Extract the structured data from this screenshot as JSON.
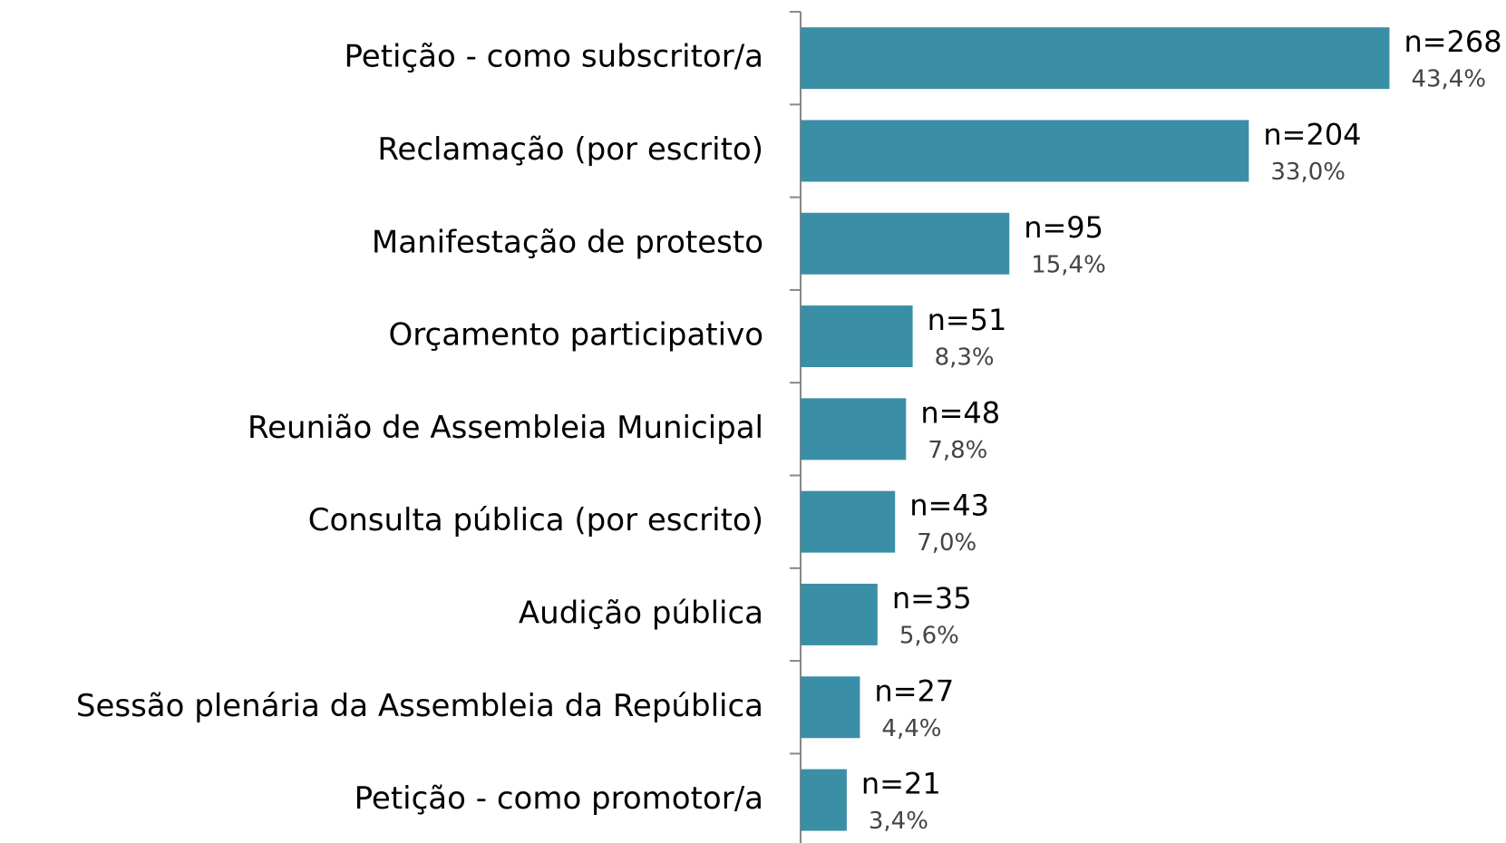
{
  "chart_data": {
    "type": "barh",
    "categories": [
      "Petição - como subscritor/a",
      "Reclamação (por escrito)",
      "Manifestação de protesto",
      "Orçamento participativo",
      "Reunião de Assembleia Municipal",
      "Consulta pública (por escrito)",
      "Audição pública",
      "Sessão plenária da Assembleia da República",
      "Petição - como promotor/a"
    ],
    "values": [
      268,
      204,
      95,
      51,
      48,
      43,
      35,
      27,
      21
    ],
    "value_labels": [
      "n=268",
      "n=204",
      "n=95",
      "n=51",
      "n=48",
      "n=43",
      "n=35",
      "n=27",
      "n=21"
    ],
    "percents": [
      43.4,
      33.0,
      15.4,
      8.3,
      7.8,
      7.0,
      5.6,
      4.4,
      3.4
    ],
    "percent_labels": [
      "43,4%",
      "33,0%",
      "15,4%",
      "8,3%",
      "7,8%",
      "7,0%",
      "5,6%",
      "4,4%",
      "3,4%"
    ],
    "color": "#3a8fa6",
    "xlim": [
      0,
      300
    ]
  }
}
